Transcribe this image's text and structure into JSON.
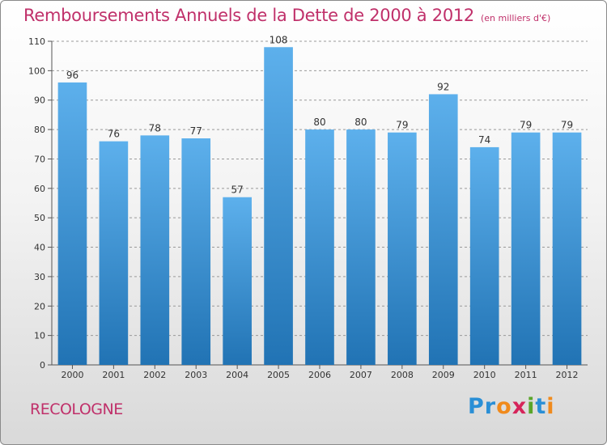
{
  "header": {
    "title": "Remboursements Annuels de la Dette de 2000 à 2012",
    "unit": "(en milliers d'€)"
  },
  "footer": {
    "place": "RECOLOGNE",
    "logo_letters": [
      "P",
      "r",
      "o",
      "x",
      "i",
      "t",
      "i"
    ],
    "logo_colors": [
      "#2a8fd6",
      "#2a8fd6",
      "#f08a1c",
      "#d6245a",
      "#5aa52a",
      "#2a8fd6",
      "#f08a1c"
    ]
  },
  "colors": {
    "bar_top": "#5db0ec",
    "bar_bottom": "#2173b4",
    "title": "#c0306a",
    "grid": "#999999"
  },
  "chart_data": {
    "type": "bar",
    "categories": [
      "2000",
      "2001",
      "2002",
      "2003",
      "2004",
      "2005",
      "2006",
      "2007",
      "2008",
      "2009",
      "2010",
      "2011",
      "2012"
    ],
    "values": [
      96,
      76,
      78,
      77,
      57,
      108,
      80,
      80,
      79,
      92,
      74,
      79,
      79
    ],
    "title": "Remboursements Annuels de la Dette de 2000 à 2012",
    "xlabel": "",
    "ylabel": "",
    "ylim": [
      0,
      110
    ],
    "yticks": [
      0,
      10,
      20,
      30,
      40,
      50,
      60,
      70,
      80,
      90,
      100,
      110
    ],
    "grid": true,
    "data_labels": true
  }
}
